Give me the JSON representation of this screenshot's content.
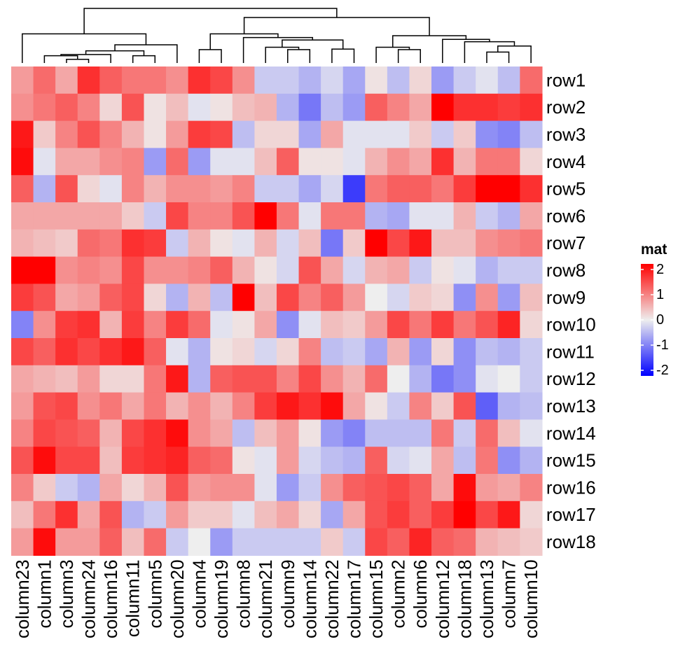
{
  "chart_data": {
    "type": "heatmap",
    "columns": [
      "column23",
      "column1",
      "column3",
      "column24",
      "column16",
      "column11",
      "column5",
      "column20",
      "column4",
      "column19",
      "column8",
      "column21",
      "column9",
      "column14",
      "column22",
      "column17",
      "column15",
      "column2",
      "column6",
      "column12",
      "column18",
      "column13",
      "column7",
      "column10"
    ],
    "rows": [
      "row1",
      "row2",
      "row3",
      "row4",
      "row5",
      "row6",
      "row7",
      "row8",
      "row9",
      "row10",
      "row11",
      "row12",
      "row13",
      "row14",
      "row15",
      "row16",
      "row17",
      "row18"
    ],
    "values": [
      [
        0.7,
        1.1,
        0.6,
        1.6,
        1.2,
        1.0,
        1.0,
        0.8,
        1.6,
        1.4,
        0.8,
        -0.3,
        -0.3,
        -0.5,
        -0.2,
        -0.6,
        0.1,
        -0.4,
        0.2,
        -0.7,
        -0.3,
        -0.1,
        -0.4,
        1.1
      ],
      [
        0.8,
        1.0,
        1.2,
        0.9,
        0.2,
        1.3,
        0.1,
        0.4,
        -0.1,
        0.1,
        0.4,
        0.5,
        -0.5,
        -1.0,
        -0.4,
        -0.7,
        1.2,
        0.9,
        0.6,
        2.1,
        1.6,
        1.6,
        1.5,
        1.6
      ],
      [
        1.8,
        0.3,
        0.9,
        1.3,
        0.9,
        0.5,
        0.1,
        0.7,
        1.5,
        1.4,
        -0.4,
        0.2,
        0.2,
        -0.6,
        0.6,
        -0.1,
        -0.1,
        -0.1,
        0.3,
        -0.3,
        0.3,
        -0.8,
        -0.9,
        -0.4
      ],
      [
        1.9,
        -0.1,
        0.6,
        0.6,
        0.8,
        0.9,
        -0.7,
        1.1,
        -0.7,
        -0.1,
        -0.1,
        0.4,
        1.2,
        0.1,
        0.1,
        -0.1,
        0.5,
        0.8,
        0.6,
        1.6,
        0.5,
        1.0,
        1.0,
        0.2
      ],
      [
        1.2,
        -0.5,
        1.3,
        0.2,
        -0.1,
        0.9,
        0.5,
        0.8,
        0.8,
        0.7,
        0.9,
        -0.3,
        -0.3,
        -0.6,
        -0.2,
        -1.5,
        1.0,
        1.2,
        1.2,
        1.0,
        1.5,
        2.2,
        2.2,
        1.6
      ],
      [
        0.6,
        0.6,
        0.6,
        0.6,
        0.6,
        0.3,
        -0.3,
        1.4,
        0.9,
        0.9,
        1.3,
        2.0,
        1.0,
        -0.1,
        1.0,
        1.0,
        -0.5,
        -0.6,
        -0.1,
        -0.1,
        0.5,
        -0.3,
        -0.5,
        0.6
      ],
      [
        0.5,
        0.4,
        0.3,
        1.1,
        1.0,
        1.6,
        1.5,
        -0.3,
        0.5,
        0.1,
        -0.1,
        0.5,
        -0.2,
        0.4,
        -1.0,
        0.3,
        2.2,
        1.4,
        1.8,
        0.4,
        0.4,
        0.8,
        0.9,
        1.0
      ],
      [
        2.0,
        2.2,
        0.8,
        0.9,
        0.8,
        1.4,
        0.8,
        0.8,
        0.9,
        1.2,
        0.5,
        0.1,
        -0.2,
        1.3,
        0.6,
        -0.2,
        0.5,
        0.6,
        -0.3,
        0.1,
        -0.1,
        -0.5,
        -0.3,
        -0.3
      ],
      [
        1.5,
        1.3,
        0.6,
        0.7,
        1.2,
        1.4,
        0.2,
        -0.5,
        0.5,
        -0.4,
        2.1,
        0.4,
        1.4,
        0.9,
        1.2,
        0.7,
        0.0,
        -0.2,
        0.3,
        0.2,
        -0.8,
        0.8,
        -0.7,
        0.4
      ],
      [
        -0.9,
        0.8,
        1.5,
        1.6,
        0.5,
        1.5,
        0.9,
        1.5,
        1.1,
        -0.1,
        0.1,
        0.6,
        -0.8,
        -0.1,
        0.4,
        0.3,
        0.7,
        1.4,
        1.0,
        1.5,
        1.0,
        1.3,
        1.7,
        0.2
      ],
      [
        1.4,
        1.2,
        1.6,
        1.4,
        1.6,
        1.8,
        1.2,
        -0.1,
        -0.5,
        0.1,
        0.2,
        -0.2,
        0.2,
        0.9,
        -0.4,
        -0.3,
        -0.6,
        0.5,
        -0.7,
        0.2,
        -0.8,
        -0.4,
        -0.5,
        -0.3
      ],
      [
        0.6,
        0.5,
        0.4,
        0.7,
        0.2,
        0.2,
        1.0,
        1.8,
        -0.5,
        1.2,
        1.3,
        1.3,
        0.9,
        1.4,
        0.8,
        0.5,
        1.1,
        0.0,
        -0.5,
        -1.0,
        -0.8,
        -0.1,
        0.0,
        -0.3
      ],
      [
        0.7,
        1.3,
        1.4,
        0.8,
        1.0,
        0.6,
        1.0,
        0.5,
        0.8,
        0.5,
        0.9,
        1.5,
        1.8,
        1.6,
        1.9,
        0.6,
        0.1,
        -0.3,
        0.9,
        0.3,
        1.3,
        -1.2,
        -0.5,
        -0.4
      ],
      [
        0.9,
        1.4,
        1.3,
        1.2,
        0.5,
        1.4,
        1.6,
        1.9,
        0.8,
        0.6,
        -0.4,
        0.4,
        0.7,
        0.1,
        -0.7,
        -0.9,
        -0.4,
        -0.4,
        -0.4,
        1.0,
        -0.3,
        1.1,
        0.4,
        -0.1
      ],
      [
        1.3,
        1.9,
        1.4,
        1.4,
        0.4,
        1.5,
        1.6,
        1.7,
        1.2,
        1.1,
        0.1,
        -0.1,
        0.7,
        -0.2,
        -0.4,
        -0.5,
        1.2,
        -0.2,
        -0.1,
        0.6,
        -0.4,
        1.0,
        -0.8,
        -0.5
      ],
      [
        0.9,
        0.3,
        -0.3,
        -0.5,
        0.6,
        0.2,
        0.5,
        1.3,
        0.7,
        0.8,
        0.8,
        -0.1,
        -0.7,
        -0.3,
        0.8,
        1.2,
        1.3,
        1.4,
        1.2,
        0.6,
        1.9,
        0.7,
        0.6,
        0.9
      ],
      [
        0.4,
        1.0,
        1.6,
        0.6,
        1.3,
        -0.5,
        -0.3,
        0.7,
        0.3,
        0.3,
        -0.1,
        0.4,
        0.6,
        0.2,
        -0.6,
        0.6,
        1.3,
        1.5,
        1.2,
        1.5,
        2.2,
        1.4,
        1.8,
        0.2
      ],
      [
        0.7,
        1.9,
        0.7,
        0.7,
        1.2,
        0.4,
        1.1,
        -0.3,
        0.0,
        -0.7,
        -0.3,
        -0.3,
        -0.3,
        -0.3,
        0.3,
        -0.3,
        1.4,
        1.2,
        1.7,
        1.2,
        1.1,
        0.5,
        0.4,
        0.3
      ]
    ],
    "legend": {
      "title": "mat",
      "ticks": [
        2,
        1,
        0,
        -1,
        -2
      ],
      "tick_labels": [
        "2",
        "1",
        "0",
        "-1",
        "-2"
      ]
    },
    "color_scale": {
      "low": "#0000FF",
      "mid": "#EEEEEE",
      "high": "#FF0000",
      "range": [
        -2,
        2
      ]
    },
    "column_dendrogram": {
      "leaf_order": [
        "column23",
        "column1",
        "column3",
        "column24",
        "column16",
        "column11",
        "column5",
        "column20",
        "column4",
        "column19",
        "column8",
        "column21",
        "column9",
        "column14",
        "column22",
        "column17",
        "column15",
        "column2",
        "column6",
        "column12",
        "column18",
        "column13",
        "column7",
        "column10"
      ],
      "merges": [
        [
          2,
          3,
          0.06
        ],
        [
          1,
          24,
          0.12
        ],
        [
          4,
          25,
          0.14
        ],
        [
          5,
          6,
          0.12
        ],
        [
          26,
          27,
          0.2
        ],
        [
          7,
          28,
          0.3
        ],
        [
          0,
          29,
          0.48
        ],
        [
          8,
          9,
          0.22
        ],
        [
          12,
          13,
          0.22
        ],
        [
          11,
          32,
          0.26
        ],
        [
          14,
          15,
          0.23
        ],
        [
          33,
          34,
          0.38
        ],
        [
          10,
          35,
          0.42
        ],
        [
          31,
          36,
          0.48
        ],
        [
          17,
          18,
          0.22
        ],
        [
          16,
          38,
          0.26
        ],
        [
          21,
          22,
          0.18
        ],
        [
          23,
          40,
          0.28
        ],
        [
          20,
          41,
          0.35
        ],
        [
          19,
          42,
          0.39
        ],
        [
          39,
          43,
          0.45
        ],
        [
          37,
          44,
          0.75
        ],
        [
          30,
          45,
          0.9
        ]
      ]
    }
  },
  "colors": {
    "dendrogram": "#000000",
    "label": "#000000",
    "background": "#FFFFFF"
  }
}
